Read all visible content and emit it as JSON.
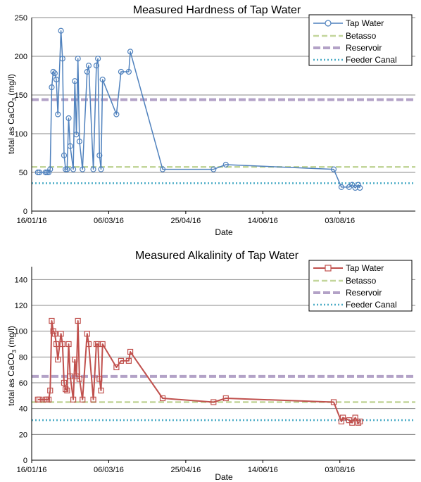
{
  "chart_data": [
    {
      "type": "line",
      "title": "Measured Hardness of Tap Water",
      "xlabel": "Date",
      "ylabel_main": "total as CaCO",
      "ylabel_sub": "3",
      "ylabel_unit": " (mg/l)",
      "x_axis": "date",
      "xlim": [
        "2016-01-16",
        "2016-09-21"
      ],
      "ylim": [
        0,
        250
      ],
      "yticks": [
        0,
        50,
        100,
        150,
        200,
        250
      ],
      "xtick_dates": [
        "2016-01-16",
        "2016-03-06",
        "2016-04-25",
        "2016-06-14",
        "2016-08-03"
      ],
      "xtick_labels": [
        "16/01/16",
        "06/03/16",
        "25/04/16",
        "14/06/16",
        "03/08/16"
      ],
      "grid": "horizontal",
      "legend_position": "top-right",
      "legend": [
        "Tap Water",
        "Betasso",
        "Reservoir",
        "Feeder Canal"
      ],
      "series": [
        {
          "name": "Tap Water",
          "color": "#4f81bd",
          "marker": "circle",
          "points": [
            {
              "x": "2016-01-20",
              "y": 50
            },
            {
              "x": "2016-01-21",
              "y": 50
            },
            {
              "x": "2016-01-25",
              "y": 50
            },
            {
              "x": "2016-01-26",
              "y": 50
            },
            {
              "x": "2016-01-27",
              "y": 50
            },
            {
              "x": "2016-01-28",
              "y": 54
            },
            {
              "x": "2016-01-29",
              "y": 160
            },
            {
              "x": "2016-01-30",
              "y": 180
            },
            {
              "x": "2016-01-31",
              "y": 178
            },
            {
              "x": "2016-02-01",
              "y": 170
            },
            {
              "x": "2016-02-02",
              "y": 125
            },
            {
              "x": "2016-02-04",
              "y": 233
            },
            {
              "x": "2016-02-05",
              "y": 197
            },
            {
              "x": "2016-02-06",
              "y": 72
            },
            {
              "x": "2016-02-07",
              "y": 54
            },
            {
              "x": "2016-02-08",
              "y": 54
            },
            {
              "x": "2016-02-09",
              "y": 120
            },
            {
              "x": "2016-02-10",
              "y": 84
            },
            {
              "x": "2016-02-12",
              "y": 54
            },
            {
              "x": "2016-02-13",
              "y": 168
            },
            {
              "x": "2016-02-14",
              "y": 99
            },
            {
              "x": "2016-02-15",
              "y": 197
            },
            {
              "x": "2016-02-16",
              "y": 90
            },
            {
              "x": "2016-02-18",
              "y": 54
            },
            {
              "x": "2016-02-21",
              "y": 180
            },
            {
              "x": "2016-02-22",
              "y": 188
            },
            {
              "x": "2016-02-25",
              "y": 54
            },
            {
              "x": "2016-02-27",
              "y": 188
            },
            {
              "x": "2016-02-28",
              "y": 197
            },
            {
              "x": "2016-02-29",
              "y": 72
            },
            {
              "x": "2016-03-01",
              "y": 54
            },
            {
              "x": "2016-03-02",
              "y": 170
            },
            {
              "x": "2016-03-11",
              "y": 125
            },
            {
              "x": "2016-03-14",
              "y": 180
            },
            {
              "x": "2016-03-19",
              "y": 180
            },
            {
              "x": "2016-03-20",
              "y": 206
            },
            {
              "x": "2016-04-10",
              "y": 54
            },
            {
              "x": "2016-05-13",
              "y": 54
            },
            {
              "x": "2016-05-21",
              "y": 60
            },
            {
              "x": "2016-07-30",
              "y": 54
            },
            {
              "x": "2016-08-04",
              "y": 31
            },
            {
              "x": "2016-08-09",
              "y": 31
            },
            {
              "x": "2016-08-11",
              "y": 34
            },
            {
              "x": "2016-08-13",
              "y": 30
            },
            {
              "x": "2016-08-15",
              "y": 34
            },
            {
              "x": "2016-08-16",
              "y": 30
            }
          ]
        },
        {
          "name": "Betasso",
          "color": "#c3d69b",
          "style": "dashed",
          "value": 57
        },
        {
          "name": "Reservoir",
          "color": "#b3a2c7",
          "style": "dashed-thick",
          "value": 144
        },
        {
          "name": "Feeder Canal",
          "color": "#4bacc6",
          "style": "dotted",
          "value": 36
        }
      ]
    },
    {
      "type": "line",
      "title": "Measured Alkalinity of Tap Water",
      "xlabel": "Date",
      "ylabel_main": "total as CaCO",
      "ylabel_sub": "3",
      "ylabel_unit": " (mg/l)",
      "x_axis": "date",
      "xlim": [
        "2016-01-16",
        "2016-09-21"
      ],
      "ylim": [
        0,
        150
      ],
      "yticks": [
        0,
        20,
        40,
        60,
        80,
        100,
        120,
        140
      ],
      "xtick_dates": [
        "2016-01-16",
        "2016-03-06",
        "2016-04-25",
        "2016-06-14",
        "2016-08-03"
      ],
      "xtick_labels": [
        "16/01/16",
        "06/03/16",
        "25/04/16",
        "14/06/16",
        "03/08/16"
      ],
      "grid": "horizontal",
      "legend_position": "top-right",
      "legend": [
        "Tap Water",
        "Betasso",
        "Reservoir",
        "Feeder Canal"
      ],
      "series": [
        {
          "name": "Tap Water",
          "color": "#c0504d",
          "marker": "square",
          "points": [
            {
              "x": "2016-01-20",
              "y": 47
            },
            {
              "x": "2016-01-21",
              "y": 47
            },
            {
              "x": "2016-01-25",
              "y": 47
            },
            {
              "x": "2016-01-26",
              "y": 47
            },
            {
              "x": "2016-01-27",
              "y": 47
            },
            {
              "x": "2016-01-28",
              "y": 54
            },
            {
              "x": "2016-01-29",
              "y": 108
            },
            {
              "x": "2016-01-30",
              "y": 100
            },
            {
              "x": "2016-01-31",
              "y": 98
            },
            {
              "x": "2016-02-01",
              "y": 90
            },
            {
              "x": "2016-02-02",
              "y": 78
            },
            {
              "x": "2016-02-04",
              "y": 98
            },
            {
              "x": "2016-02-05",
              "y": 90
            },
            {
              "x": "2016-02-06",
              "y": 60
            },
            {
              "x": "2016-02-07",
              "y": 55
            },
            {
              "x": "2016-02-08",
              "y": 54
            },
            {
              "x": "2016-02-09",
              "y": 90
            },
            {
              "x": "2016-02-10",
              "y": 65
            },
            {
              "x": "2016-02-12",
              "y": 47
            },
            {
              "x": "2016-02-13",
              "y": 78
            },
            {
              "x": "2016-02-14",
              "y": 65
            },
            {
              "x": "2016-02-15",
              "y": 108
            },
            {
              "x": "2016-02-16",
              "y": 63
            },
            {
              "x": "2016-02-18",
              "y": 47
            },
            {
              "x": "2016-02-21",
              "y": 98
            },
            {
              "x": "2016-02-22",
              "y": 90
            },
            {
              "x": "2016-02-25",
              "y": 47
            },
            {
              "x": "2016-02-27",
              "y": 90
            },
            {
              "x": "2016-02-28",
              "y": 90
            },
            {
              "x": "2016-02-29",
              "y": 63
            },
            {
              "x": "2016-03-01",
              "y": 54
            },
            {
              "x": "2016-03-02",
              "y": 90
            },
            {
              "x": "2016-03-11",
              "y": 72
            },
            {
              "x": "2016-03-14",
              "y": 77
            },
            {
              "x": "2016-03-19",
              "y": 77
            },
            {
              "x": "2016-03-20",
              "y": 84
            },
            {
              "x": "2016-04-10",
              "y": 48
            },
            {
              "x": "2016-05-13",
              "y": 45
            },
            {
              "x": "2016-05-21",
              "y": 48
            },
            {
              "x": "2016-07-30",
              "y": 45
            },
            {
              "x": "2016-08-04",
              "y": 30
            },
            {
              "x": "2016-08-05",
              "y": 33
            },
            {
              "x": "2016-08-09",
              "y": 31
            },
            {
              "x": "2016-08-11",
              "y": 29
            },
            {
              "x": "2016-08-13",
              "y": 33
            },
            {
              "x": "2016-08-15",
              "y": 29
            },
            {
              "x": "2016-08-16",
              "y": 30
            }
          ]
        },
        {
          "name": "Betasso",
          "color": "#c3d69b",
          "style": "dashed",
          "value": 45
        },
        {
          "name": "Reservoir",
          "color": "#b3a2c7",
          "style": "dashed-thick",
          "value": 65
        },
        {
          "name": "Feeder Canal",
          "color": "#4bacc6",
          "style": "dotted",
          "value": 31
        }
      ]
    }
  ]
}
